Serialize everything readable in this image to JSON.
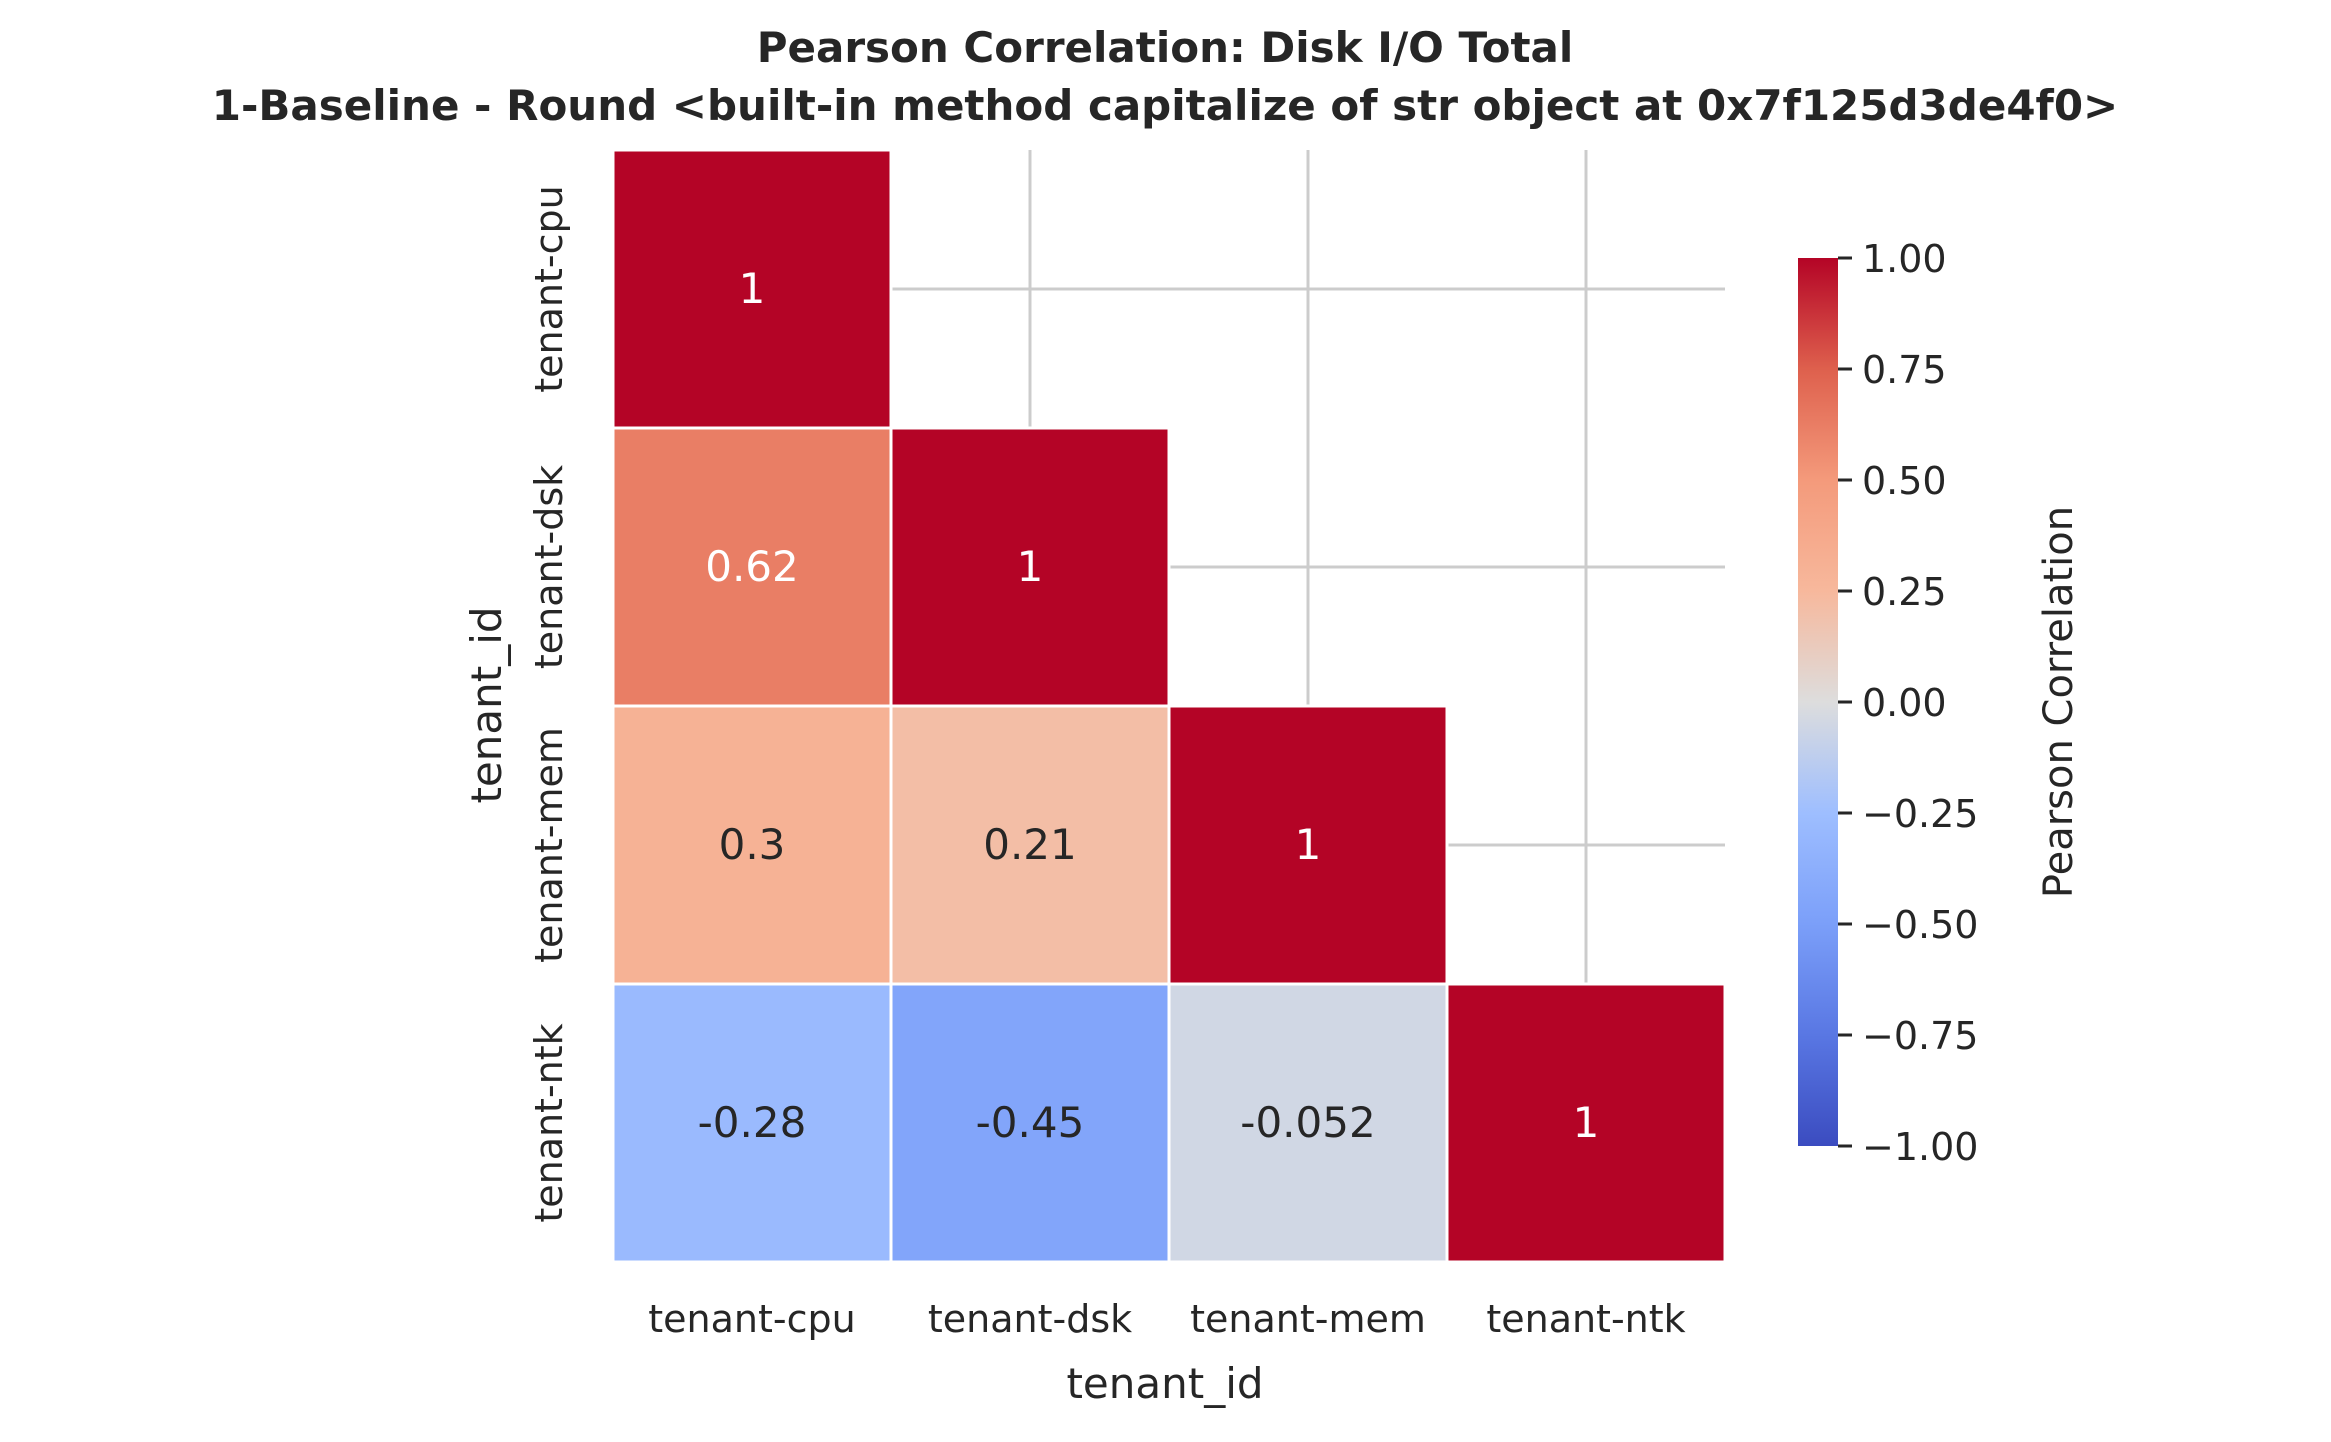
{
  "chart_data": {
    "type": "heatmap",
    "title_line1": "Pearson Correlation: Disk I/O Total",
    "title_line2": "1-Baseline - Round <built-in method capitalize of str object at 0x7f125d3de4f0>",
    "xlabel": "tenant_id",
    "ylabel": "tenant_id",
    "x_categories": [
      "tenant-cpu",
      "tenant-dsk",
      "tenant-mem",
      "tenant-ntk"
    ],
    "y_categories": [
      "tenant-cpu",
      "tenant-dsk",
      "tenant-mem",
      "tenant-ntk"
    ],
    "mask": "upper-triangle",
    "cells": [
      {
        "row": 0,
        "col": 0,
        "value": 1,
        "label": "1"
      },
      {
        "row": 1,
        "col": 0,
        "value": 0.62,
        "label": "0.62"
      },
      {
        "row": 1,
        "col": 1,
        "value": 1,
        "label": "1"
      },
      {
        "row": 2,
        "col": 0,
        "value": 0.3,
        "label": "0.3"
      },
      {
        "row": 2,
        "col": 1,
        "value": 0.21,
        "label": "0.21"
      },
      {
        "row": 2,
        "col": 2,
        "value": 1,
        "label": "1"
      },
      {
        "row": 3,
        "col": 0,
        "value": -0.28,
        "label": "-0.28"
      },
      {
        "row": 3,
        "col": 1,
        "value": -0.45,
        "label": "-0.45"
      },
      {
        "row": 3,
        "col": 2,
        "value": -0.052,
        "label": "-0.052"
      },
      {
        "row": 3,
        "col": 3,
        "value": 1,
        "label": "1"
      }
    ],
    "colormap": "coolwarm",
    "vmin": -1,
    "vmax": 1,
    "grid": true,
    "colorbar": {
      "label": "Pearson Correlation",
      "ticks": [
        1.0,
        0.75,
        0.5,
        0.25,
        0.0,
        -0.25,
        -0.5,
        -0.75,
        -1.0
      ],
      "tick_labels": [
        "1.00",
        "0.75",
        "0.50",
        "0.25",
        "0.00",
        "−0.25",
        "−0.50",
        "−0.75",
        "−1.00"
      ]
    },
    "colors": {
      "grid": "#cccccc",
      "text_dark": "#262626",
      "text_light": "#ffffff",
      "cell_border": "#ffffff"
    }
  }
}
